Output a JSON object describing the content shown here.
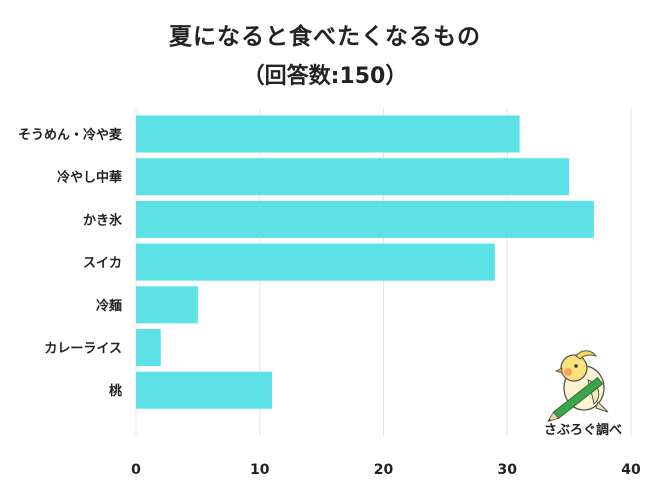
{
  "chart_data": {
    "type": "bar",
    "orientation": "horizontal",
    "title": "夏になると食べたくなるもの",
    "subtitle": "（回答数:150）",
    "categories": [
      "そうめん・冷や麦",
      "冷やし中華",
      "かき氷",
      "スイカ",
      "冷麺",
      "カレーライス",
      "桃"
    ],
    "values": [
      31,
      35,
      37,
      29,
      5,
      2,
      11
    ],
    "xlim": [
      0,
      40
    ],
    "xticks": [
      0,
      10,
      20,
      30,
      40
    ],
    "grid": true,
    "bar_color": "#5ce1e6"
  },
  "watermark": {
    "text": "さぶろぐ調べ",
    "icon": "bird-with-pencil-icon"
  }
}
